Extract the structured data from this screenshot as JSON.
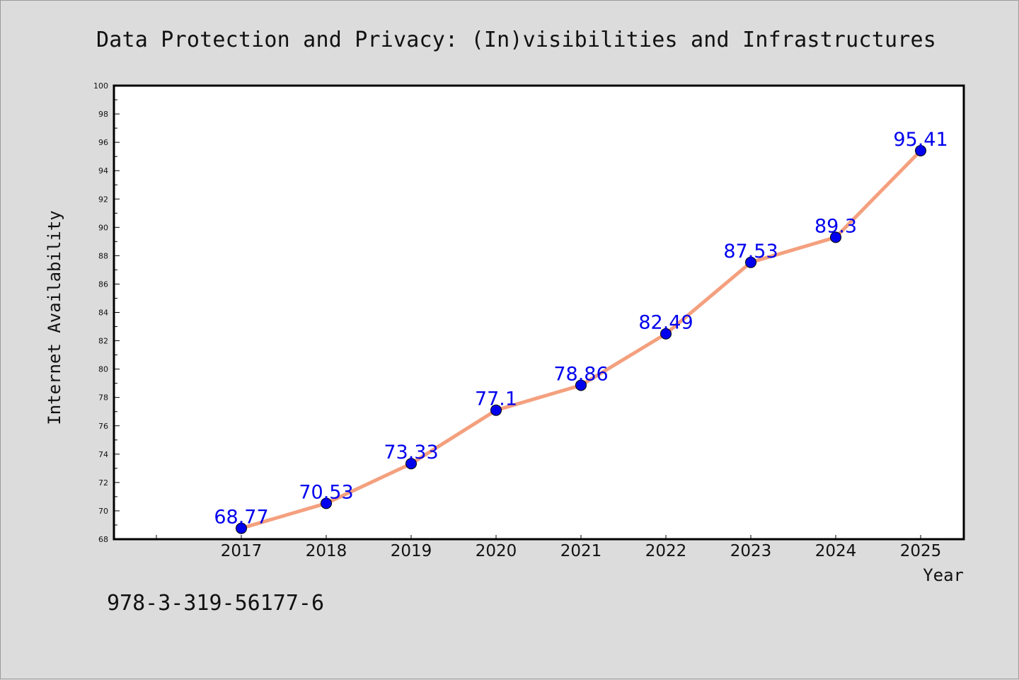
{
  "title": "Data Protection and Privacy: (In)visibilities and Infrastructures",
  "footer": "978-3-319-56177-6",
  "colors": {
    "line": "#f4a07e",
    "marker": "#0000ee",
    "label": "#0000ee",
    "background": "#dcdcdc",
    "plot_background": "#ffffff"
  },
  "chart_data": {
    "type": "line",
    "title": "Data Protection and Privacy: (In)visibilities and Infrastructures",
    "xlabel": "Year",
    "ylabel": "Internet Availability",
    "x": [
      "2017",
      "2018",
      "2019",
      "2020",
      "2021",
      "2022",
      "2023",
      "2024",
      "2025"
    ],
    "values": [
      68.77,
      70.53,
      73.33,
      77.1,
      78.86,
      82.49,
      87.53,
      89.3,
      95.41
    ],
    "data_labels": [
      "68.77",
      "70.53",
      "73.33",
      "77.1",
      "78.86",
      "82.49",
      "87.53",
      "89.3",
      "95.41"
    ],
    "ylim": [
      68,
      100
    ],
    "yticks": [
      "68",
      "70",
      "72",
      "74",
      "76",
      "78",
      "80",
      "82",
      "84",
      "86",
      "88",
      "90",
      "92",
      "94",
      "96",
      "98",
      "100"
    ],
    "grid": false,
    "legend": "none"
  }
}
